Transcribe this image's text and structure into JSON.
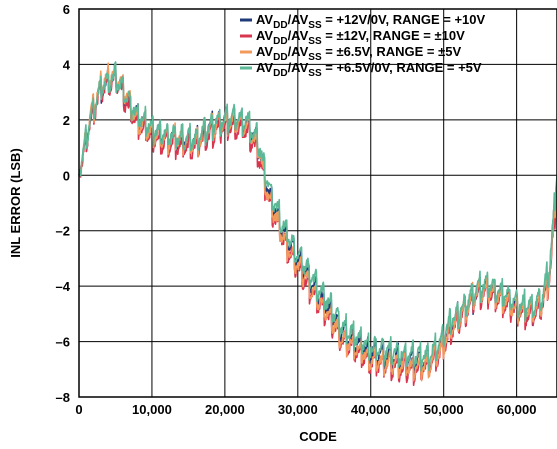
{
  "chart_data": {
    "type": "line",
    "xlabel": "CODE",
    "ylabel": "INL ERROR (LSB)",
    "xlim": [
      0,
      65535
    ],
    "ylim": [
      -8,
      6
    ],
    "x_ticks": [
      0,
      10000,
      20000,
      30000,
      40000,
      50000,
      60000
    ],
    "x_tick_labels": [
      "0",
      "10,000",
      "20,000",
      "30,000",
      "40,000",
      "50,000",
      "60,000"
    ],
    "y_ticks": [
      -8,
      -6,
      -4,
      -2,
      0,
      2,
      4,
      6
    ],
    "y_tick_labels": [
      "–8",
      "–6",
      "–4",
      "–2",
      "0",
      "2",
      "4",
      "6"
    ],
    "grid": true,
    "legend_position": "top-right",
    "x": [
      0,
      1500,
      3000,
      5000,
      6500,
      8000,
      10000,
      12000,
      14000,
      16000,
      17500,
      19000,
      21000,
      23000,
      24500,
      26000,
      28000,
      30000,
      32000,
      34000,
      36000,
      38000,
      40000,
      42000,
      44000,
      46000,
      48000,
      49500,
      51000,
      53000,
      54500,
      56000,
      58000,
      60000,
      62000,
      63500,
      64500,
      65535
    ],
    "series": [
      {
        "name_prefix": "AV",
        "name_sub1": "DD",
        "name_mid": "/AV",
        "name_sub2": "SS",
        "name_suffix": " = +12V/0V, RANGE = +10V",
        "color": "#1f3a78",
        "values": [
          0.0,
          2.0,
          3.2,
          3.6,
          2.8,
          2.1,
          1.6,
          1.4,
          1.3,
          1.2,
          1.6,
          1.9,
          2.0,
          1.9,
          1.2,
          -0.6,
          -2.0,
          -3.0,
          -3.9,
          -4.7,
          -5.6,
          -6.0,
          -6.4,
          -6.5,
          -6.6,
          -6.7,
          -6.7,
          -6.2,
          -5.4,
          -4.8,
          -4.2,
          -4.1,
          -4.4,
          -4.8,
          -4.9,
          -4.6,
          -3.5,
          -0.2
        ]
      },
      {
        "name_prefix": "AV",
        "name_sub1": "DD",
        "name_mid": "/AV",
        "name_sub2": "SS",
        "name_suffix": " = ±12V, RANGE = ±10V",
        "color": "#d9354f",
        "values": [
          0.0,
          1.9,
          3.1,
          3.5,
          2.6,
          1.9,
          1.4,
          1.2,
          1.1,
          1.0,
          1.4,
          1.7,
          1.8,
          1.6,
          0.9,
          -0.9,
          -2.3,
          -3.3,
          -4.2,
          -5.0,
          -5.9,
          -6.3,
          -6.7,
          -6.8,
          -6.9,
          -7.0,
          -6.9,
          -6.4,
          -5.6,
          -4.9,
          -4.3,
          -4.2,
          -4.5,
          -4.9,
          -5.0,
          -4.7,
          -3.7,
          -0.4
        ]
      },
      {
        "name_prefix": "AV",
        "name_sub1": "DD",
        "name_mid": "/AV",
        "name_sub2": "SS",
        "name_suffix": " = ±6.5V, RANGE = ±5V",
        "color": "#f29a5c",
        "values": [
          0.0,
          2.1,
          3.3,
          3.7,
          2.9,
          2.0,
          1.6,
          1.4,
          1.3,
          1.2,
          1.6,
          1.9,
          2.0,
          1.8,
          1.1,
          -0.8,
          -2.2,
          -3.2,
          -4.1,
          -4.9,
          -5.8,
          -6.2,
          -6.6,
          -6.7,
          -6.8,
          -6.9,
          -6.8,
          -6.3,
          -5.5,
          -4.8,
          -4.2,
          -4.1,
          -4.4,
          -4.8,
          -4.9,
          -4.6,
          -3.6,
          -0.3
        ]
      },
      {
        "name_prefix": "AV",
        "name_sub1": "DD",
        "name_mid": "/AV",
        "name_sub2": "SS",
        "name_suffix": " = +6.5V/0V, RANGE = +5V",
        "color": "#5cb896",
        "values": [
          0.0,
          2.0,
          3.2,
          3.6,
          2.8,
          2.2,
          1.7,
          1.5,
          1.4,
          1.3,
          1.7,
          2.0,
          2.1,
          2.0,
          1.3,
          -0.4,
          -1.8,
          -2.8,
          -3.7,
          -4.5,
          -5.4,
          -5.8,
          -6.2,
          -6.3,
          -6.4,
          -6.5,
          -6.5,
          -6.0,
          -5.2,
          -4.6,
          -4.0,
          -3.9,
          -4.2,
          -4.6,
          -4.7,
          -4.4,
          -3.3,
          0.0
        ]
      }
    ]
  }
}
